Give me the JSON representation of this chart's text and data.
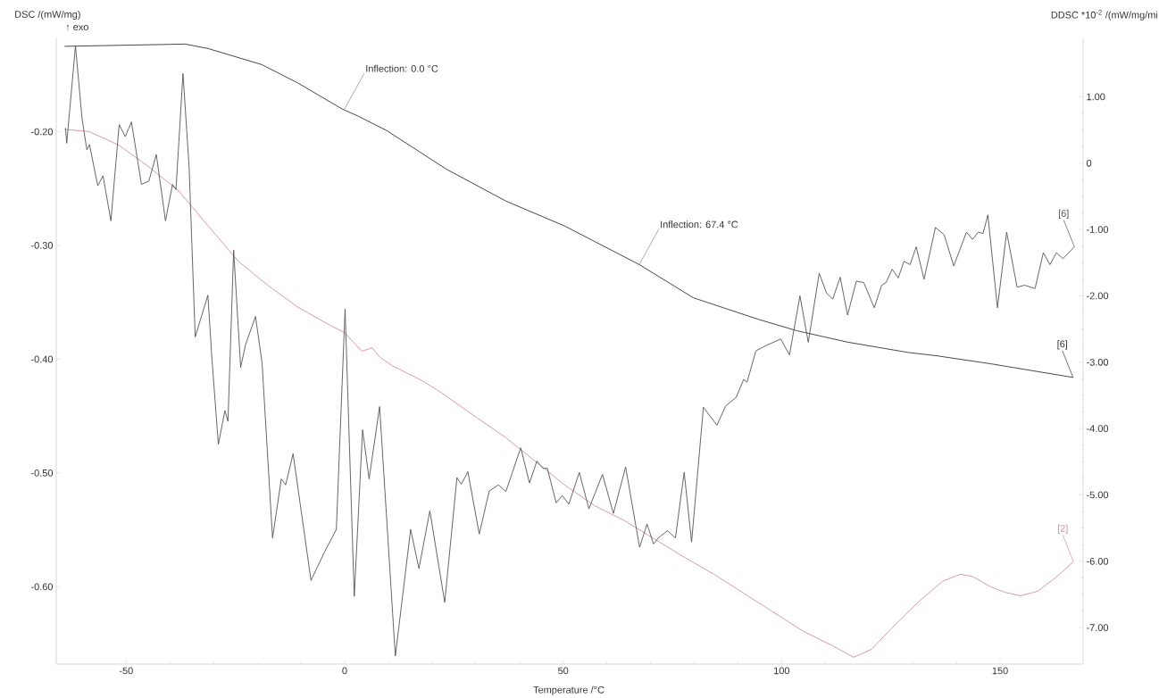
{
  "chart_data": {
    "type": "line",
    "ylabel": "DSC /(mW/mg)",
    "y2label": "DDSC *10$^{-2}$ /(mW/mg/mi",
    "xlabel": "Temperature /°C",
    "xlim": [
      -66,
      169
    ],
    "xticks": [
      -50,
      0,
      50,
      100,
      150
    ],
    "ylim": [
      -0.668,
      -0.118
    ],
    "yticks": [
      {
        "value": -0.2,
        "label": "-0.20"
      },
      {
        "value": -0.3,
        "label": "-0.30"
      },
      {
        "value": -0.4,
        "label": "-0.40"
      },
      {
        "value": -0.5,
        "label": "-0.50"
      },
      {
        "value": -0.6,
        "label": "-0.60"
      }
    ],
    "y2lim": [
      -7.55,
      1.88
    ],
    "y2ticks": [
      {
        "value": 1,
        "label": "1.00"
      },
      0,
      {
        "value": -1,
        "label": "-1.00"
      },
      {
        "value": -2,
        "label": "-2.00"
      },
      {
        "value": -3,
        "label": "-3.00"
      },
      {
        "value": -4,
        "label": "-4.00"
      },
      {
        "value": -5,
        "label": "-5.00"
      },
      {
        "value": -6,
        "label": "-6.00"
      },
      {
        "value": -7,
        "label": "-7.00"
      }
    ],
    "annotations": [
      "↑ exo",
      {
        "text": "Inflection: 0.0 °C",
        "x": 0,
        "y": -0.18
      },
      {
        "text": "Inflection: 67.4 °C",
        "x": 67.4,
        "y": -0.317
      }
    ],
    "series": [
      {
        "name": "[6]",
        "color": "#333333",
        "x": [
          -64.1,
          -36.5,
          -31.2,
          -19.0,
          -10.8,
          -0.6,
          2.9,
          9.6,
          23.3,
          36.9,
          50.4,
          67.5,
          79.8,
          94.7,
          103.5,
          115.1,
          128.8,
          135.5,
          147.8,
          166.7
        ],
        "values": [
          -0.125,
          -0.123,
          -0.127,
          -0.141,
          -0.157,
          -0.18,
          -0.186,
          -0.199,
          -0.233,
          -0.261,
          -0.283,
          -0.317,
          -0.346,
          -0.365,
          -0.375,
          -0.385,
          -0.394,
          -0.397,
          -0.404,
          -0.416
        ]
      },
      {
        "name": "[6]",
        "color": "#555555",
        "axis": "y2",
        "x": [
          -63.9,
          -63.6,
          -61.6,
          -60.1,
          -59.0,
          -58.4,
          -56.5,
          -55.3,
          -53.5,
          -51.6,
          -50.2,
          -48.8,
          -46.5,
          -44.8,
          -43.1,
          -41.0,
          -39.4,
          -38.6,
          -37.0,
          -35.6,
          -34.2,
          -31.3,
          -30.4,
          -28.9,
          -27.4,
          -26.7,
          -25.4,
          -23.8,
          -22.7,
          -20.4,
          -18.9,
          -16.5,
          -14.5,
          -13.5,
          -11.8,
          -7.7,
          -4.6,
          -1.9,
          0.1,
          2.2,
          4.1,
          5.6,
          8.0,
          11.6,
          15.1,
          17.0,
          19.5,
          22.9,
          25.7,
          26.7,
          28.2,
          30.8,
          33.1,
          35.2,
          36.9,
          40.3,
          42.3,
          44.0,
          45.4,
          46.4,
          48.4,
          49.8,
          51.3,
          53.7,
          55.9,
          59.0,
          61.5,
          64.3,
          67.5,
          69.2,
          70.7,
          71.9,
          73.9,
          75.7,
          77.7,
          79.4,
          82.1,
          85.2,
          87.2,
          89.6,
          91.3,
          92.1,
          94.1,
          96.1,
          99.8,
          101.8,
          104.2,
          106.1,
          108.6,
          110.3,
          111.7,
          113.4,
          115.1,
          117.1,
          118.8,
          121.2,
          122.9,
          123.9,
          125.3,
          126.7,
          128.0,
          129.4,
          130.8,
          132.6,
          135.2,
          137.2,
          139.4,
          142.3,
          143.7,
          145.0,
          146.1,
          147.2,
          149.4,
          151.5,
          153.9,
          155.6,
          158.0,
          159.9,
          161.4,
          162.9,
          164.4,
          167.0
        ],
        "values": [
          0.53,
          0.3,
          1.77,
          0.67,
          0.2,
          0.28,
          -0.34,
          -0.19,
          -0.87,
          0.58,
          0.4,
          0.62,
          -0.32,
          -0.27,
          0.13,
          -0.87,
          -0.32,
          -0.4,
          1.35,
          -0.05,
          -2.62,
          -1.99,
          -2.92,
          -4.24,
          -3.73,
          -3.89,
          -1.31,
          -3.08,
          -2.74,
          -2.31,
          -3.01,
          -5.65,
          -4.76,
          -4.85,
          -4.38,
          -6.29,
          -5.86,
          -5.52,
          -2.2,
          -6.53,
          -4.02,
          -4.76,
          -3.67,
          -7.43,
          -5.52,
          -6.11,
          -5.24,
          -6.62,
          -4.74,
          -4.84,
          -4.65,
          -5.59,
          -4.94,
          -4.85,
          -4.95,
          -4.29,
          -4.82,
          -4.49,
          -4.6,
          -4.6,
          -5.12,
          -5.01,
          -5.14,
          -4.66,
          -5.21,
          -4.69,
          -5.28,
          -4.58,
          -5.79,
          -5.44,
          -5.74,
          -5.64,
          -5.54,
          -5.65,
          -4.66,
          -5.71,
          -3.68,
          -3.95,
          -3.66,
          -3.53,
          -3.26,
          -3.3,
          -2.83,
          -2.76,
          -2.65,
          -2.89,
          -2.0,
          -2.7,
          -1.66,
          -1.96,
          -2.05,
          -1.72,
          -2.29,
          -1.78,
          -1.8,
          -2.18,
          -1.84,
          -1.8,
          -1.6,
          -1.73,
          -1.48,
          -1.53,
          -1.26,
          -1.75,
          -0.97,
          -1.08,
          -1.55,
          -1.04,
          -1.15,
          -1.04,
          -1.06,
          -0.78,
          -2.18,
          -1.04,
          -1.87,
          -1.84,
          -1.89,
          -1.35,
          -1.53,
          -1.35,
          -1.44,
          -1.26
        ]
      },
      {
        "name": "[2]",
        "color": "#d4909c",
        "x": [
          -64.1,
          -58.4,
          -51.6,
          -44.8,
          -38.0,
          -31.2,
          -24.3,
          -17.6,
          -10.8,
          -3.9,
          0.1,
          3.9,
          6.3,
          8.0,
          11.0,
          17.8,
          21.2,
          30.1,
          36.9,
          43.7,
          50.5,
          57.3,
          64.1,
          70.9,
          77.7,
          84.5,
          94.7,
          104.9,
          111.7,
          116.5,
          120.6,
          125.3,
          131.4,
          136.9,
          141.0,
          143.7,
          147.8,
          151.2,
          154.6,
          158.6,
          162.7,
          166.8
        ],
        "values": [
          -0.198,
          -0.2,
          -0.212,
          -0.231,
          -0.252,
          -0.283,
          -0.314,
          -0.335,
          -0.354,
          -0.369,
          -0.377,
          -0.393,
          -0.39,
          -0.398,
          -0.406,
          -0.419,
          -0.427,
          -0.451,
          -0.469,
          -0.49,
          -0.511,
          -0.529,
          -0.542,
          -0.558,
          -0.574,
          -0.589,
          -0.614,
          -0.639,
          -0.652,
          -0.662,
          -0.655,
          -0.636,
          -0.613,
          -0.595,
          -0.589,
          -0.591,
          -0.6,
          -0.605,
          -0.608,
          -0.604,
          -0.592,
          -0.578
        ]
      }
    ]
  }
}
